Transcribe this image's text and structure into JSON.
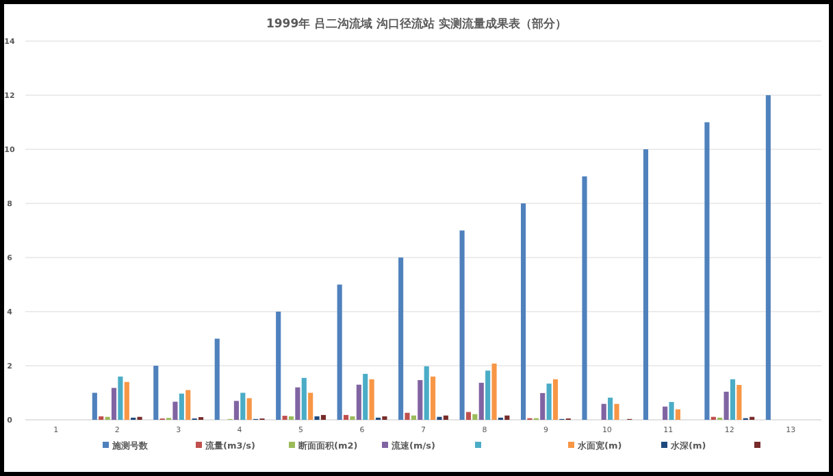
{
  "chart_data": {
    "type": "bar",
    "title": "1999年  吕二沟流域  沟口径流站  实测流量成果表（部分）",
    "categories": [
      "1",
      "2",
      "3",
      "4",
      "5",
      "6",
      "7",
      "8",
      "9",
      "10",
      "11",
      "12",
      "13"
    ],
    "series": [
      {
        "name": "施测号数",
        "color": "#4f81bd",
        "values": [
          null,
          1,
          2,
          3,
          4,
          5,
          6,
          7,
          8,
          9,
          10,
          11,
          12
        ]
      },
      {
        "name": "流量(m3/s)",
        "color": "#c0504d",
        "values": [
          null,
          0.13,
          0.05,
          null,
          0.15,
          0.18,
          0.26,
          0.29,
          0.06,
          null,
          null,
          0.11,
          null
        ]
      },
      {
        "name": "断面面积(m2)",
        "color": "#9bbb59",
        "values": [
          null,
          0.11,
          0.07,
          0.03,
          0.13,
          0.13,
          0.16,
          0.21,
          0.06,
          null,
          null,
          0.08,
          null
        ]
      },
      {
        "name": "流速(m/s)",
        "color": "#8064a2",
        "values": [
          null,
          1.18,
          0.67,
          0.7,
          1.2,
          1.3,
          1.47,
          1.37,
          0.99,
          0.59,
          0.49,
          1.04,
          null
        ]
      },
      {
        "color": "#4bacc6",
        "values": [
          null,
          1.6,
          0.97,
          1.0,
          1.55,
          1.7,
          1.98,
          1.82,
          1.34,
          0.82,
          0.66,
          1.5,
          null
        ]
      },
      {
        "name": "水面宽(m)",
        "color": "#f79646",
        "values": [
          null,
          1.4,
          1.1,
          0.8,
          1.0,
          1.5,
          1.6,
          2.08,
          1.5,
          0.59,
          0.39,
          1.29,
          null
        ]
      },
      {
        "name": "水深(m)",
        "color": "#1f497d",
        "values": [
          null,
          0.08,
          0.05,
          0.03,
          0.13,
          0.08,
          0.11,
          0.08,
          0.03,
          null,
          null,
          0.06,
          null
        ]
      },
      {
        "color": "#772c2a",
        "values": [
          null,
          0.11,
          0.1,
          0.05,
          0.18,
          0.13,
          0.16,
          0.16,
          0.05,
          0.03,
          null,
          0.11,
          null
        ]
      }
    ],
    "ylim": [
      0,
      14
    ],
    "yticks": [
      0,
      2,
      4,
      6,
      8,
      10,
      12,
      14
    ],
    "grid": "y",
    "legend": "bottom"
  }
}
